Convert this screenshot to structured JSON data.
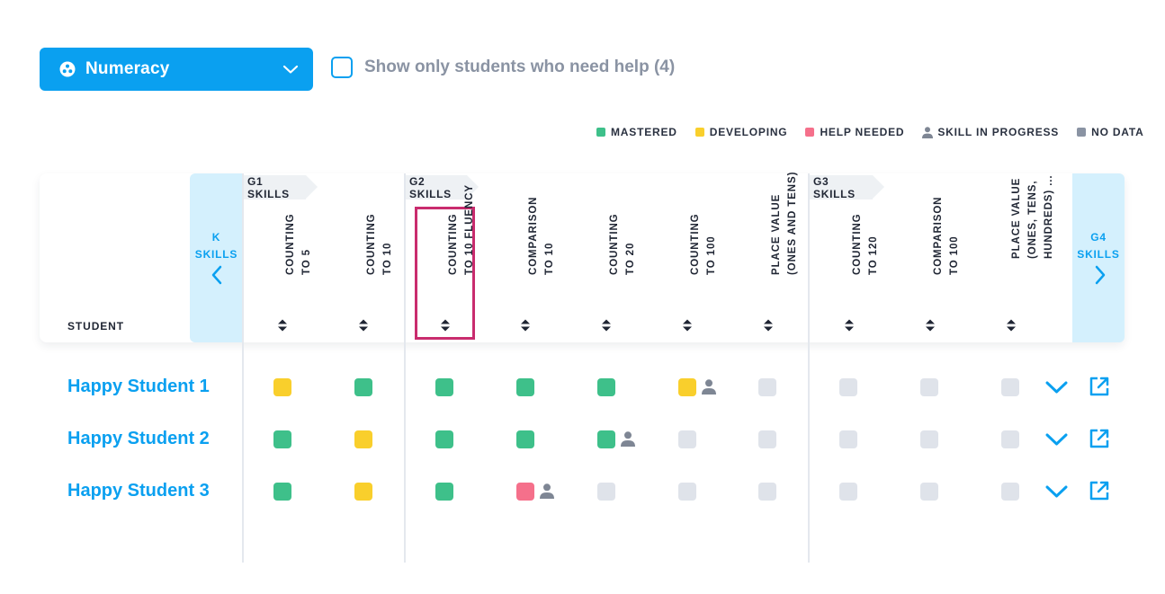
{
  "subject_dropdown": {
    "label": "Numeracy",
    "icon": "numeracy-icon"
  },
  "filter": {
    "label": "Show only students who need help (4)",
    "checked": false
  },
  "legend": [
    {
      "label": "MASTERED",
      "status": "mastered"
    },
    {
      "label": "DEVELOPING",
      "status": "developing"
    },
    {
      "label": "HELP NEEDED",
      "status": "help"
    },
    {
      "label": "SKILL IN PROGRESS",
      "status": "in-progress",
      "icon": "person-icon"
    },
    {
      "label": "NO DATA",
      "status": "nodata"
    }
  ],
  "colors": {
    "accent": "#0aa0f0",
    "mastered": "#3ec08a",
    "developing": "#f9cf2c",
    "help": "#f5708b",
    "nodata": "#dfe3ea",
    "person": "#7e8694",
    "selected_border": "#c92c6e"
  },
  "nav": {
    "prev": {
      "label_line1": "K",
      "label_line2": "SKILLS"
    },
    "next": {
      "label_line1": "G4",
      "label_line2": "SKILLS"
    }
  },
  "grade_tabs": [
    {
      "label": "G1 SKILLS"
    },
    {
      "label": "G2 SKILLS"
    },
    {
      "label": "G3 SKILLS"
    }
  ],
  "student_header": "STUDENT",
  "columns": [
    {
      "line1": "COUNTING",
      "line2": "TO 5"
    },
    {
      "line1": "COUNTING",
      "line2": "TO 10"
    },
    {
      "line1": "COUNTING",
      "line2": "TO 10 FLUENCY",
      "selected": true
    },
    {
      "line1": "COMPARISON",
      "line2": "TO 10"
    },
    {
      "line1": "COUNTING",
      "line2": "TO 20"
    },
    {
      "line1": "COUNTING",
      "line2": "TO 100"
    },
    {
      "line1": "PLACE VALUE",
      "line2": "(ONES AND TENS)"
    },
    {
      "line1": "COUNTING",
      "line2": "TO 120"
    },
    {
      "line1": "COMPARISON",
      "line2": "TO 100"
    },
    {
      "line1": "PLACE VALUE",
      "line2": "(ONES, TENS,",
      "line3": "HUNDREDS) ..."
    }
  ],
  "students": [
    {
      "name": "Happy Student 1",
      "cells": [
        {
          "s": "developing"
        },
        {
          "s": "mastered"
        },
        {
          "s": "mastered"
        },
        {
          "s": "mastered"
        },
        {
          "s": "mastered"
        },
        {
          "s": "developing",
          "p": true
        },
        {
          "s": "nodata"
        },
        {
          "s": "nodata"
        },
        {
          "s": "nodata"
        },
        {
          "s": "nodata"
        }
      ]
    },
    {
      "name": "Happy Student 2",
      "cells": [
        {
          "s": "mastered"
        },
        {
          "s": "developing"
        },
        {
          "s": "mastered"
        },
        {
          "s": "mastered"
        },
        {
          "s": "mastered",
          "p": true
        },
        {
          "s": "nodata"
        },
        {
          "s": "nodata"
        },
        {
          "s": "nodata"
        },
        {
          "s": "nodata"
        },
        {
          "s": "nodata"
        }
      ]
    },
    {
      "name": "Happy Student 3",
      "cells": [
        {
          "s": "mastered"
        },
        {
          "s": "developing"
        },
        {
          "s": "mastered"
        },
        {
          "s": "help",
          "p": true
        },
        {
          "s": "nodata"
        },
        {
          "s": "nodata"
        },
        {
          "s": "nodata"
        },
        {
          "s": "nodata"
        },
        {
          "s": "nodata"
        },
        {
          "s": "nodata"
        }
      ]
    }
  ],
  "row_actions": {
    "expand_icon": "chevron-down-icon",
    "open_icon": "external-link-icon"
  }
}
